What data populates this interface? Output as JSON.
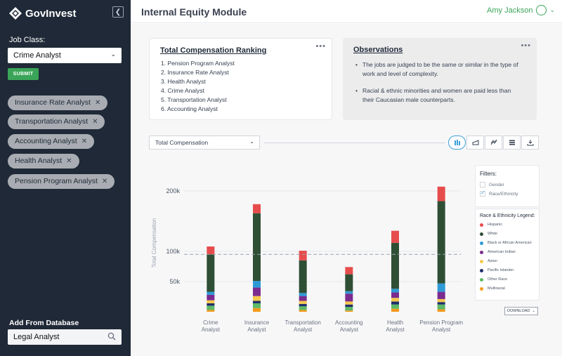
{
  "app": {
    "brand": "GovInvest",
    "title": "Internal Equity Module",
    "user_name": "Amy Jackson"
  },
  "sidebar": {
    "job_class_label": "Job Class:",
    "job_class_value": "Crime Analyst",
    "submit_label": "SUBMIT",
    "chips": [
      "Insurance Rate Analyst",
      "Transportation Analyst",
      "Accounting Analyst",
      "Health Analyst",
      "Pension Program Analyst"
    ],
    "add_label": "Add From Database",
    "add_value": "Legal Analyst"
  },
  "ranking": {
    "title": "Total Compensation Ranking",
    "items": [
      "1. Pension Program Analyst",
      "2. Insurance Rate Analyst",
      "3. Health Analyst",
      "4. Crime Analyst",
      "5. Transportation Analyst",
      "6. Accounting Analyst"
    ]
  },
  "observations": {
    "title": "Observations",
    "items": [
      "The jobs are judged to be the same or similar in the type of work and level of complexity.",
      "Racial & ethnic minorities and women are paid less than their Caucasian male counterparts."
    ]
  },
  "controls": {
    "metric": "Total Compensation",
    "download_label": "DOWNLOAD"
  },
  "filters": {
    "title": "Filters:",
    "options": [
      {
        "label": "Gender",
        "checked": false
      },
      {
        "label": "Race/Ethnicity",
        "checked": true
      }
    ]
  },
  "legend": {
    "title": "Race & Ethnicity Legend:",
    "items": [
      {
        "label": "Hispanic",
        "color": "#e74c4c"
      },
      {
        "label": "White",
        "color": "#2f4f35"
      },
      {
        "label": "Black or African American",
        "color": "#2e9ad6"
      },
      {
        "label": "American Indian",
        "color": "#7b2c8f"
      },
      {
        "label": "Asian",
        "color": "#f5c84c"
      },
      {
        "label": "Pacific Islander",
        "color": "#1f2f6b"
      },
      {
        "label": "Other Race",
        "color": "#5fb865"
      },
      {
        "label": "Multiracial",
        "color": "#f59a1b"
      }
    ]
  },
  "chart_data": {
    "type": "bar",
    "stacked": true,
    "ylabel": "Total Compensation",
    "ylim": [
      0,
      230000
    ],
    "yticks": [
      50000,
      100000,
      200000
    ],
    "ytick_labels": [
      "50k",
      "100k",
      "200k"
    ],
    "reference_line": 95000,
    "categories": [
      "Crime Analyst",
      "Insurance Analyst",
      "Transportation Analyst",
      "Accounting Analyst",
      "Health Analyst",
      "Pension Program Analyst"
    ],
    "category_lines": [
      [
        "Crime",
        "Analyst"
      ],
      [
        "Insurance",
        "Analyst"
      ],
      [
        "Transportation",
        "Analyst"
      ],
      [
        "Accounting",
        "Analyst"
      ],
      [
        "Health",
        "Analyst"
      ],
      [
        "Pension Program",
        "Analyst"
      ]
    ],
    "series": [
      {
        "name": "Multiracial",
        "color": "#f59a1b",
        "values": [
          3000,
          6000,
          3000,
          2000,
          5000,
          4000
        ]
      },
      {
        "name": "Other Race",
        "color": "#5fb865",
        "values": [
          7000,
          8000,
          6000,
          6000,
          7000,
          8000
        ]
      },
      {
        "name": "Pacific Islander",
        "color": "#1f2f6b",
        "values": [
          4000,
          4000,
          4000,
          4000,
          5000,
          4000
        ]
      },
      {
        "name": "Asian",
        "color": "#f5c84c",
        "values": [
          5000,
          8000,
          5000,
          5000,
          6000,
          5000
        ]
      },
      {
        "name": "American Indian",
        "color": "#7b2c8f",
        "values": [
          9000,
          14000,
          8000,
          13000,
          9000,
          12000
        ]
      },
      {
        "name": "Black or African American",
        "color": "#2e9ad6",
        "values": [
          5000,
          11000,
          5000,
          4000,
          6000,
          14000
        ]
      },
      {
        "name": "White",
        "color": "#2f4f35",
        "values": [
          62000,
          112000,
          54000,
          28000,
          76000,
          136000
        ]
      },
      {
        "name": "Hispanic",
        "color": "#e74c4c",
        "values": [
          13000,
          15000,
          16000,
          12000,
          20000,
          24000
        ]
      }
    ]
  }
}
